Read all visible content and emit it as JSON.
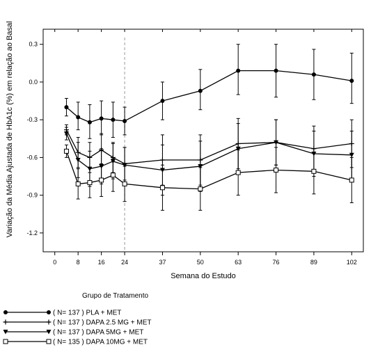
{
  "chart_data": {
    "type": "line",
    "xlabel": "Semana do Estudo",
    "ylabel": "Variação da Média Ajustada de HbA1c (%) em relação ao Basal",
    "x_ticks": [
      0,
      8,
      16,
      24,
      37,
      50,
      63,
      76,
      89,
      102
    ],
    "x_tick_labels": [
      "0",
      "8",
      "16",
      "24",
      "37",
      "50",
      "63",
      "76",
      "89",
      "102"
    ],
    "y_ticks": [
      -1.2,
      -0.9,
      -0.6,
      -0.3,
      0.0,
      0.3
    ],
    "y_tick_labels": [
      "-1.2",
      "-0.9",
      "-0.6",
      "-0.3",
      "0.0",
      "0.3"
    ],
    "xlim": [
      -4,
      106
    ],
    "ylim": [
      -1.35,
      0.42
    ],
    "reference_line_x": 24,
    "grid": false,
    "legend_title": "Grupo de Tratamento",
    "legend_placement": "bottom-left",
    "series": [
      {
        "name": "( N= 137 ) PLA + MET",
        "marker": "circle",
        "x": [
          4,
          8,
          12,
          16,
          20,
          24,
          37,
          50,
          63,
          76,
          89,
          102
        ],
        "values": [
          -0.2,
          -0.28,
          -0.32,
          -0.29,
          -0.3,
          -0.31,
          -0.15,
          -0.07,
          0.09,
          0.09,
          0.06,
          0.01
        ],
        "error_low": [
          -0.27,
          -0.38,
          -0.45,
          -0.42,
          -0.44,
          -0.42,
          -0.3,
          -0.22,
          -0.1,
          -0.12,
          -0.14,
          -0.17
        ],
        "error_high": [
          -0.13,
          -0.16,
          -0.18,
          -0.15,
          -0.16,
          -0.2,
          0.0,
          0.1,
          0.3,
          0.3,
          0.26,
          0.23
        ]
      },
      {
        "name": "( N= 137 ) DAPA 2.5 MG + MET",
        "marker": "plus",
        "x": [
          4,
          8,
          12,
          16,
          20,
          24,
          37,
          50,
          63,
          76,
          89,
          102
        ],
        "values": [
          -0.38,
          -0.56,
          -0.6,
          -0.54,
          -0.6,
          -0.65,
          -0.62,
          -0.62,
          -0.49,
          -0.48,
          -0.53,
          -0.49
        ],
        "error_low": [
          -0.42,
          -0.68,
          -0.72,
          -0.67,
          -0.72,
          -0.78,
          -0.82,
          -0.82,
          -0.69,
          -0.66,
          -0.71,
          -0.68
        ],
        "error_high": [
          -0.34,
          -0.44,
          -0.48,
          -0.41,
          -0.48,
          -0.52,
          -0.42,
          -0.42,
          -0.29,
          -0.3,
          -0.35,
          -0.3
        ]
      },
      {
        "name": "( N= 137 ) DAPA  5MG + MET",
        "marker": "triangle-down",
        "x": [
          4,
          8,
          12,
          16,
          20,
          24,
          37,
          50,
          63,
          76,
          89,
          102
        ],
        "values": [
          -0.41,
          -0.62,
          -0.69,
          -0.67,
          -0.63,
          -0.66,
          -0.7,
          -0.67,
          -0.53,
          -0.48,
          -0.57,
          -0.58
        ],
        "error_low": [
          -0.46,
          -0.76,
          -0.83,
          -0.81,
          -0.77,
          -0.8,
          -0.9,
          -0.87,
          -0.73,
          -0.66,
          -0.75,
          -0.77
        ],
        "error_high": [
          -0.36,
          -0.48,
          -0.55,
          -0.53,
          -0.49,
          -0.52,
          -0.5,
          -0.47,
          -0.33,
          -0.3,
          -0.39,
          -0.39
        ]
      },
      {
        "name": "( N= 135 ) DAPA  10MG + MET",
        "marker": "square",
        "x": [
          4,
          8,
          12,
          16,
          20,
          24,
          37,
          50,
          63,
          76,
          89,
          102
        ],
        "values": [
          -0.55,
          -0.81,
          -0.8,
          -0.78,
          -0.74,
          -0.81,
          -0.84,
          -0.85,
          -0.72,
          -0.7,
          -0.71,
          -0.78
        ],
        "error_low": [
          -0.6,
          -0.93,
          -0.92,
          -0.91,
          -0.87,
          -0.95,
          -1.02,
          -1.02,
          -0.9,
          -0.88,
          -0.89,
          -0.96
        ],
        "error_high": [
          -0.5,
          -0.69,
          -0.68,
          -0.65,
          -0.61,
          -0.67,
          -0.66,
          -0.68,
          -0.54,
          -0.52,
          -0.53,
          -0.6
        ]
      }
    ]
  }
}
